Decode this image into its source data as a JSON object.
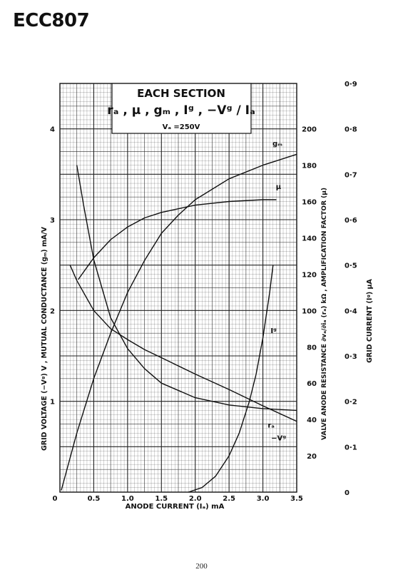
{
  "header": {
    "tube": "ECC807",
    "page_number": "200"
  },
  "chart_data": {
    "type": "line",
    "title": "EACH SECTION",
    "subtitle": "rₐ , μ , gₘ , Iᵍ , −Vᵍ / Iₐ",
    "condition": "Vₐ =250V",
    "xlabel": "ANODE CURRENT (Iₐ) mA",
    "xlim": [
      0,
      3.5
    ],
    "x_ticks": [
      {
        "v": 0,
        "t": "0"
      },
      {
        "v": 0.5,
        "t": "0.5"
      },
      {
        "v": 1.0,
        "t": "1.0"
      },
      {
        "v": 1.5,
        "t": "1.5"
      },
      {
        "v": 2.0,
        "t": "2.0"
      },
      {
        "v": 2.5,
        "t": "2.5"
      },
      {
        "v": 3.0,
        "t": "3.0"
      },
      {
        "v": 3.5,
        "t": "3.5"
      }
    ],
    "left_axis": {
      "label": "GRID VOLTAGE (−Vᵍ) V ,   MUTUAL CONDUCTANCE (gₘ) mA/V",
      "range": [
        0,
        4.5
      ],
      "ticks": [
        {
          "v": 1,
          "t": "1"
        },
        {
          "v": 2,
          "t": "2"
        },
        {
          "v": 3,
          "t": "3"
        },
        {
          "v": 4,
          "t": "4"
        }
      ]
    },
    "mid_axis": {
      "label": "VALVE ANODE RESISTANCE ∂vₐ/∂iₐ (rₐ) kΩ ,   AMPLIFICATION FACTOR (μ)",
      "range": [
        0,
        225
      ],
      "ticks": [
        {
          "v": 20,
          "t": "20"
        },
        {
          "v": 40,
          "t": "40"
        },
        {
          "v": 60,
          "t": "60"
        },
        {
          "v": 80,
          "t": "80"
        },
        {
          "v": 100,
          "t": "100"
        },
        {
          "v": 120,
          "t": "120"
        },
        {
          "v": 140,
          "t": "140"
        },
        {
          "v": 160,
          "t": "160"
        },
        {
          "v": 180,
          "t": "180"
        },
        {
          "v": 200,
          "t": "200"
        }
      ]
    },
    "right_axis": {
      "label": "GRID CURRENT (Iᵍ) μA",
      "range": [
        0,
        0.9
      ],
      "ticks": [
        {
          "v": 0,
          "t": "0"
        },
        {
          "v": 0.1,
          "t": "0·1"
        },
        {
          "v": 0.2,
          "t": "0·2"
        },
        {
          "v": 0.3,
          "t": "0·3"
        },
        {
          "v": 0.4,
          "t": "0·4"
        },
        {
          "v": 0.5,
          "t": "0·5"
        },
        {
          "v": 0.6,
          "t": "0·6"
        },
        {
          "v": 0.7,
          "t": "0·7"
        },
        {
          "v": 0.8,
          "t": "0·8"
        },
        {
          "v": 0.9,
          "t": "0·9"
        }
      ]
    },
    "grid": true,
    "series": [
      {
        "name": "μ",
        "axis": "mid",
        "x": [
          0.27,
          0.5,
          0.75,
          1.0,
          1.25,
          1.5,
          2.0,
          2.5,
          3.0,
          3.2
        ],
        "y": [
          117,
          129,
          139,
          146,
          151,
          154,
          158,
          160,
          161,
          161
        ]
      },
      {
        "name": "gₘ",
        "axis": "left",
        "x": [
          0.02,
          0.25,
          0.5,
          0.75,
          1.0,
          1.25,
          1.5,
          1.75,
          2.0,
          2.5,
          3.0,
          3.5
        ],
        "y": [
          0.02,
          0.65,
          1.25,
          1.75,
          2.2,
          2.55,
          2.85,
          3.05,
          3.22,
          3.45,
          3.6,
          3.72
        ]
      },
      {
        "name": "rₐ",
        "axis": "mid",
        "x": [
          0.25,
          0.35,
          0.5,
          0.75,
          1.0,
          1.25,
          1.5,
          2.0,
          2.5,
          3.0,
          3.5
        ],
        "y": [
          180,
          158,
          128,
          96,
          79,
          68,
          60,
          52,
          48,
          46,
          45
        ]
      },
      {
        "name": "−Vᵍ",
        "axis": "left",
        "x": [
          0.15,
          0.25,
          0.5,
          0.75,
          1.0,
          1.25,
          1.5,
          2.0,
          2.5,
          3.0,
          3.5
        ],
        "y": [
          2.5,
          2.33,
          2.0,
          1.8,
          1.68,
          1.57,
          1.48,
          1.3,
          1.13,
          0.95,
          0.78
        ]
      },
      {
        "name": "Iᵍ",
        "axis": "right",
        "x": [
          1.9,
          2.1,
          2.3,
          2.5,
          2.65,
          2.8,
          2.9,
          3.0,
          3.1,
          3.15
        ],
        "y": [
          0.0,
          0.01,
          0.035,
          0.08,
          0.13,
          0.2,
          0.26,
          0.34,
          0.44,
          0.5
        ]
      }
    ]
  }
}
